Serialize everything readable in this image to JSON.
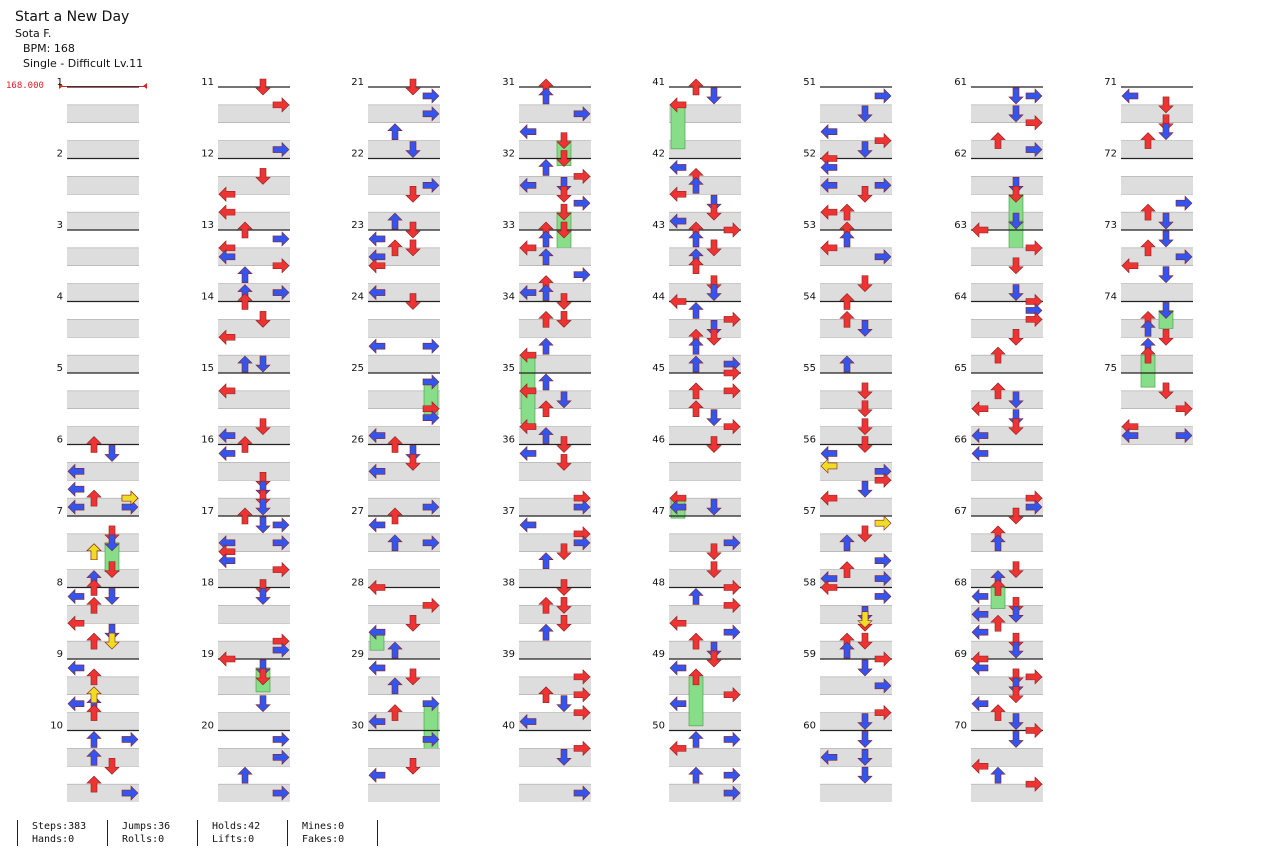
{
  "song": {
    "title": "Start a New Day",
    "artist": "Sota F.",
    "bpm_line": "BPM: 168",
    "difficulty_line": "Single - Difficult Lv.11"
  },
  "bpm_marker": "168.000",
  "measure_labels": [
    "1",
    "2",
    "3",
    "4",
    "5",
    "6",
    "7",
    "8",
    "9",
    "10",
    "11",
    "12",
    "13",
    "14",
    "15",
    "16",
    "17",
    "18",
    "19",
    "20",
    "21",
    "22",
    "23",
    "24",
    "25",
    "26",
    "27",
    "28",
    "29",
    "30",
    "31",
    "32",
    "33",
    "34",
    "35",
    "36",
    "37",
    "38",
    "39",
    "40",
    "41",
    "42",
    "43",
    "44",
    "45",
    "46",
    "47",
    "48",
    "49",
    "50",
    "51",
    "52",
    "53",
    "54",
    "55",
    "56",
    "57",
    "58",
    "59",
    "60",
    "61",
    "62",
    "63",
    "64",
    "65",
    "66",
    "67",
    "68",
    "69",
    "70",
    "71",
    "72",
    "73",
    "74",
    "75"
  ],
  "stats": {
    "steps": "Steps:383",
    "hands": "Hands:0",
    "jumps": "Jumps:36",
    "rolls": "Rolls:0",
    "holds": "Holds:42",
    "lifts": "Lifts:0",
    "mines": "Mines:0",
    "fakes": "Fakes:0"
  },
  "colors": {
    "quarter": "#ee3333",
    "eighth": "#3355ee",
    "sixteenth": "#eedd22",
    "hold": "#88dd88",
    "band": "#dddddd"
  }
}
